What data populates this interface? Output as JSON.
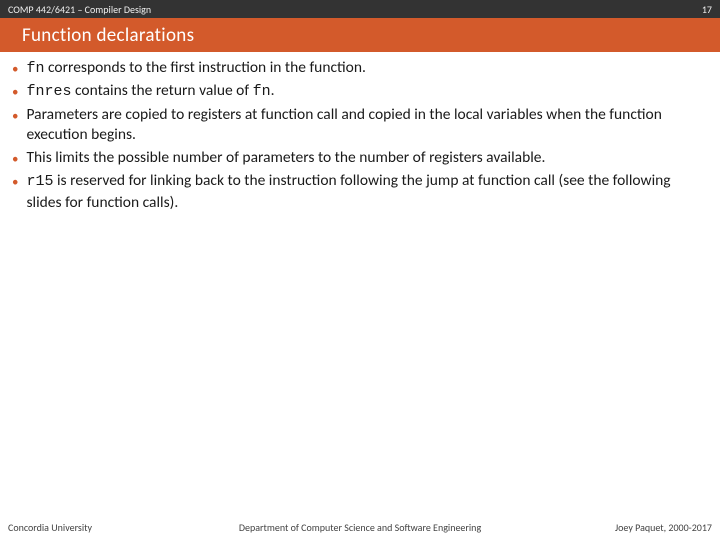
{
  "header": {
    "course": "COMP 442/6421 – Compiler Design",
    "page_number": "17"
  },
  "title": "Function declarations",
  "bullets": [
    {
      "parts": [
        {
          "t": "fn",
          "code": true
        },
        {
          "t": " corresponds to the first instruction in the function.",
          "code": false
        }
      ]
    },
    {
      "parts": [
        {
          "t": "fnres",
          "code": true
        },
        {
          "t": " contains the return value of ",
          "code": false
        },
        {
          "t": "fn",
          "code": true
        },
        {
          "t": ".",
          "code": false
        }
      ]
    },
    {
      "parts": [
        {
          "t": "Parameters are copied to registers at function call and copied in the local variables when the function execution begins.",
          "code": false
        }
      ]
    },
    {
      "parts": [
        {
          "t": "This limits the possible number of parameters to the number of registers available.",
          "code": false
        }
      ]
    },
    {
      "parts": [
        {
          "t": "r15",
          "code": true
        },
        {
          "t": " is reserved for linking back to the instruction following the jump at function call (see the following slides for function calls).",
          "code": false
        }
      ]
    }
  ],
  "footer": {
    "left": "Concordia University",
    "center": "Department of Computer Science and Software Engineering",
    "right": "Joey Paquet, 2000-2017"
  },
  "colors": {
    "header_bg": "#333333",
    "title_bg": "#d35a2b",
    "bullet_color": "#d35a2b",
    "text_color": "#1a1a1a"
  }
}
